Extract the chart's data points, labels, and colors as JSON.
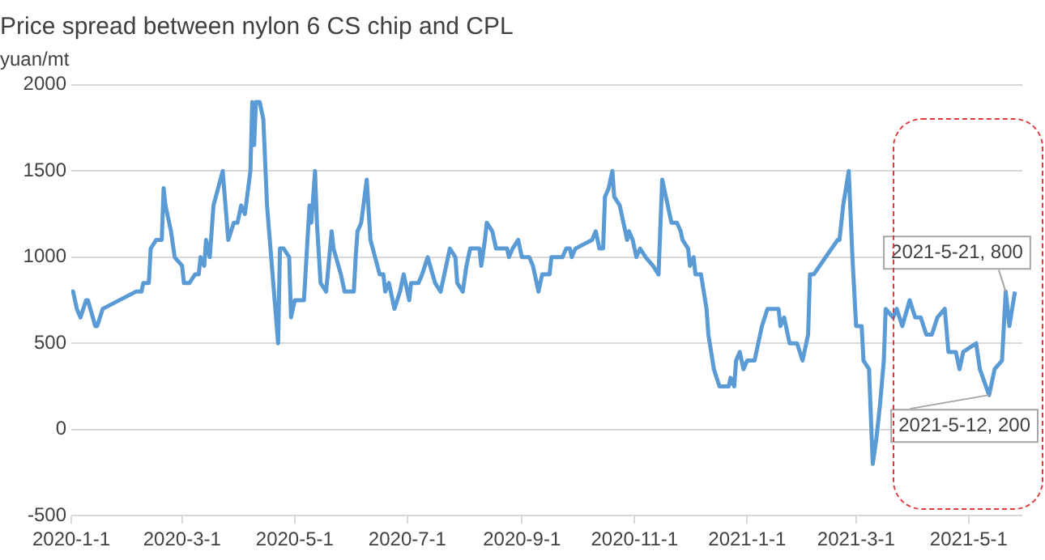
{
  "chart_data": {
    "type": "line",
    "title": "Price spread between nylon 6 CS chip and CPL",
    "ylabel": "yuan/mt",
    "x": [
      "2020-01-01",
      "2020-01-02",
      "2020-01-04",
      "2020-01-06",
      "2020-01-09",
      "2020-01-10",
      "2020-01-14",
      "2020-01-15",
      "2020-01-18",
      "2020-02-05",
      "2020-02-08",
      "2020-02-09",
      "2020-02-12",
      "2020-02-13",
      "2020-02-16",
      "2020-02-19",
      "2020-02-20",
      "2020-02-21",
      "2020-02-24",
      "2020-02-26",
      "2020-03-01",
      "2020-03-02",
      "2020-03-05",
      "2020-03-08",
      "2020-03-10",
      "2020-03-11",
      "2020-03-13",
      "2020-03-14",
      "2020-03-16",
      "2020-03-18",
      "2020-03-23",
      "2020-03-26",
      "2020-03-29",
      "2020-03-31",
      "2020-04-02",
      "2020-04-04",
      "2020-04-07",
      "2020-04-08",
      "2020-04-09",
      "2020-04-10",
      "2020-04-12",
      "2020-04-14",
      "2020-04-16",
      "2020-04-22",
      "2020-04-23",
      "2020-04-25",
      "2020-04-28",
      "2020-04-29",
      "2020-05-01",
      "2020-05-06",
      "2020-05-09",
      "2020-05-10",
      "2020-05-12",
      "2020-05-13",
      "2020-05-15",
      "2020-05-18",
      "2020-05-21",
      "2020-05-22",
      "2020-05-26",
      "2020-05-28",
      "2020-06-02",
      "2020-06-03",
      "2020-06-04",
      "2020-06-06",
      "2020-06-09",
      "2020-06-11",
      "2020-06-16",
      "2020-06-18",
      "2020-06-19",
      "2020-06-21",
      "2020-06-24",
      "2020-06-27",
      "2020-06-29",
      "2020-07-02",
      "2020-07-03",
      "2020-07-07",
      "2020-07-09",
      "2020-07-12",
      "2020-07-16",
      "2020-07-19",
      "2020-07-22",
      "2020-07-24",
      "2020-07-27",
      "2020-07-28",
      "2020-07-31",
      "2020-08-02",
      "2020-08-04",
      "2020-08-09",
      "2020-08-10",
      "2020-08-12",
      "2020-08-13",
      "2020-08-16",
      "2020-08-18",
      "2020-08-24",
      "2020-08-25",
      "2020-08-27",
      "2020-08-30",
      "2020-09-01",
      "2020-09-05",
      "2020-09-07",
      "2020-09-10",
      "2020-09-12",
      "2020-09-16",
      "2020-09-17",
      "2020-09-23",
      "2020-09-25",
      "2020-09-27",
      "2020-09-28",
      "2020-09-30",
      "2020-10-09",
      "2020-10-11",
      "2020-10-13",
      "2020-10-15",
      "2020-10-16",
      "2020-10-18",
      "2020-10-20",
      "2020-10-21",
      "2020-10-24",
      "2020-10-28",
      "2020-10-29",
      "2020-10-31",
      "2020-11-02",
      "2020-11-04",
      "2020-11-07",
      "2020-11-11",
      "2020-11-14",
      "2020-11-16",
      "2020-11-21",
      "2020-11-24",
      "2020-11-26",
      "2020-11-27",
      "2020-11-30",
      "2020-12-01",
      "2020-12-03",
      "2020-12-04",
      "2020-12-07",
      "2020-12-10",
      "2020-12-11",
      "2020-12-14",
      "2020-12-17",
      "2020-12-22",
      "2020-12-23",
      "2020-12-25",
      "2020-12-26",
      "2020-12-28",
      "2020-12-30",
      "2021-01-01",
      "2021-01-05",
      "2021-01-07",
      "2021-01-09",
      "2021-01-12",
      "2021-01-18",
      "2021-01-19",
      "2021-01-21",
      "2021-01-24",
      "2021-01-28",
      "2021-01-31",
      "2021-02-03",
      "2021-02-04",
      "2021-02-06",
      "2021-02-19",
      "2021-02-20",
      "2021-02-22",
      "2021-02-25",
      "2021-02-27",
      "2021-03-01",
      "2021-03-04",
      "2021-03-05",
      "2021-03-08",
      "2021-03-10",
      "2021-03-12",
      "2021-03-14",
      "2021-03-16",
      "2021-03-17",
      "2021-03-21",
      "2021-03-23",
      "2021-03-26",
      "2021-03-30",
      "2021-04-02",
      "2021-04-05",
      "2021-04-08",
      "2021-04-11",
      "2021-04-14",
      "2021-04-18",
      "2021-04-20",
      "2021-04-24",
      "2021-04-26",
      "2021-04-28",
      "2021-05-05",
      "2021-05-07",
      "2021-05-12",
      "2021-05-15",
      "2021-05-19",
      "2021-05-21",
      "2021-05-23",
      "2021-05-26"
    ],
    "series": [
      {
        "color": "#5b9bd5",
        "values": [
          800,
          800,
          700,
          650,
          750,
          750,
          600,
          600,
          700,
          800,
          800,
          850,
          850,
          1050,
          1100,
          1100,
          1400,
          1300,
          1150,
          1000,
          950,
          850,
          850,
          900,
          900,
          1000,
          950,
          1100,
          1000,
          1300,
          1500,
          1100,
          1200,
          1200,
          1300,
          1250,
          1500,
          1900,
          1650,
          1900,
          1900,
          1800,
          1300,
          500,
          1050,
          1050,
          1000,
          650,
          750,
          750,
          1300,
          1200,
          1500,
          1200,
          850,
          800,
          1150,
          1050,
          900,
          800,
          800,
          1000,
          1150,
          1200,
          1450,
          1100,
          900,
          900,
          800,
          850,
          700,
          800,
          900,
          750,
          850,
          850,
          900,
          1000,
          850,
          800,
          950,
          1050,
          1000,
          850,
          800,
          950,
          1050,
          1050,
          950,
          1100,
          1200,
          1150,
          1050,
          1050,
          1000,
          1050,
          1100,
          1000,
          1000,
          950,
          800,
          900,
          900,
          1000,
          1000,
          1050,
          1050,
          1000,
          1050,
          1100,
          1150,
          1050,
          1050,
          1350,
          1400,
          1500,
          1350,
          1300,
          1100,
          1150,
          1100,
          1000,
          1050,
          1000,
          950,
          900,
          1450,
          1200,
          1200,
          1150,
          1100,
          1050,
          950,
          1000,
          900,
          900,
          700,
          550,
          350,
          250,
          250,
          300,
          250,
          400,
          450,
          350,
          400,
          400,
          500,
          600,
          700,
          700,
          600,
          650,
          500,
          500,
          400,
          550,
          900,
          900,
          1100,
          1100,
          1300,
          1500,
          1000,
          600,
          600,
          400,
          350,
          -200,
          -50,
          150,
          400,
          700,
          650,
          700,
          600,
          750,
          650,
          650,
          550,
          550,
          650,
          700,
          450,
          450,
          350,
          450,
          500,
          350,
          200,
          350,
          400,
          800,
          600,
          800
        ]
      }
    ],
    "xlim": [
      "2020-01-01",
      "2021-05-30"
    ],
    "xticks": [
      {
        "value": "2020-01-01",
        "label": "2020-1-1"
      },
      {
        "value": "2020-03-01",
        "label": "2020-3-1"
      },
      {
        "value": "2020-05-01",
        "label": "2020-5-1"
      },
      {
        "value": "2020-07-01",
        "label": "2020-7-1"
      },
      {
        "value": "2020-09-01",
        "label": "2020-9-1"
      },
      {
        "value": "2020-11-01",
        "label": "2020-11-1"
      },
      {
        "value": "2021-01-01",
        "label": "2021-1-1"
      },
      {
        "value": "2021-03-01",
        "label": "2021-3-1"
      },
      {
        "value": "2021-05-01",
        "label": "2021-5-1"
      }
    ],
    "ylim": [
      -500,
      2000
    ],
    "yticks": [
      -500,
      0,
      500,
      1000,
      1500,
      2000
    ],
    "grid": "y",
    "legend": false,
    "marker": "none",
    "line_style": "solid",
    "annotations": [
      {
        "text": "2021-5-21, 800",
        "x": "2021-05-21",
        "y": 800
      },
      {
        "text": "2021-5-12, 200",
        "x": "2021-05-12",
        "y": 200
      }
    ]
  }
}
